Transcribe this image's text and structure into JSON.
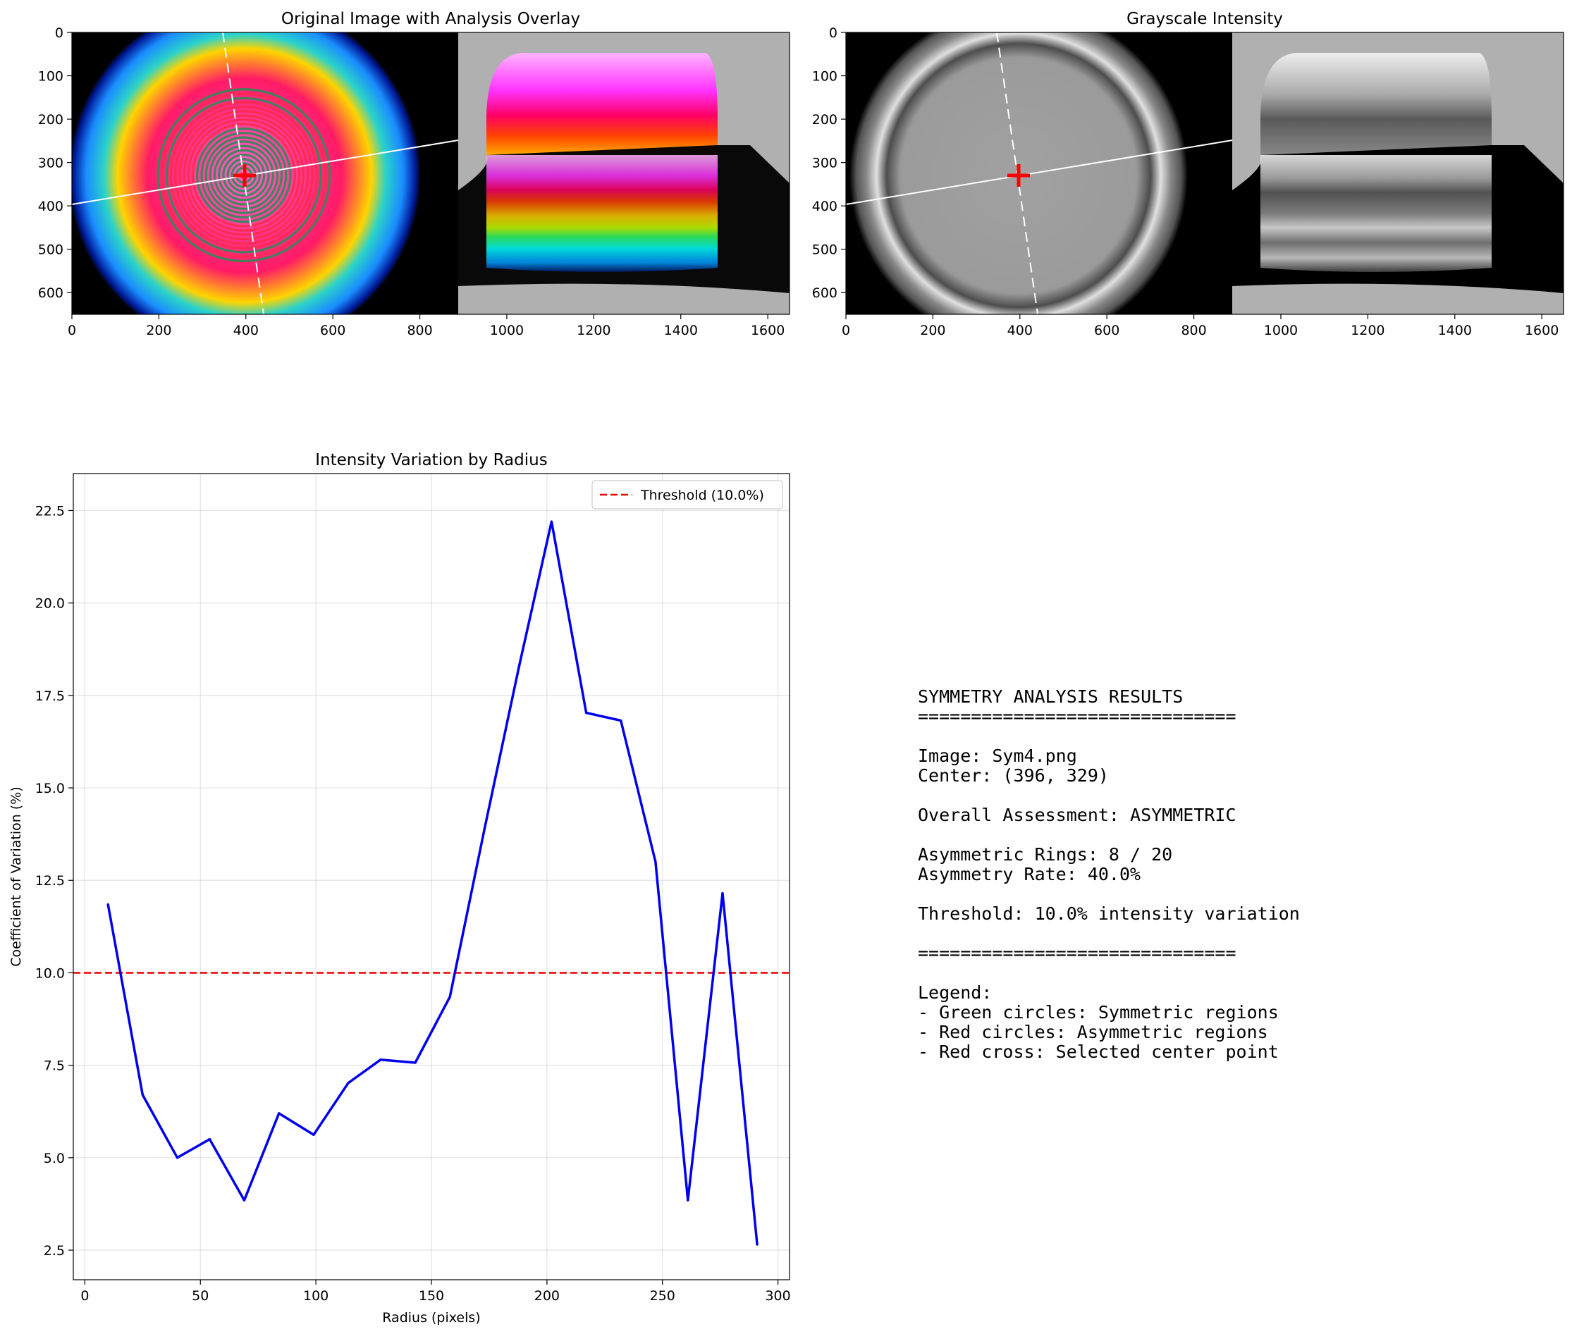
{
  "chart_data": [
    {
      "type": "image",
      "title": "Original Image with Analysis Overlay",
      "x_ticks": [
        "0",
        "200",
        "400",
        "600",
        "800",
        "1000",
        "1200",
        "1400",
        "1600"
      ],
      "y_ticks": [
        "0",
        "100",
        "200",
        "300",
        "400",
        "500",
        "600"
      ],
      "xlim": [
        0,
        1650
      ],
      "ylim": [
        650,
        0
      ],
      "center": [
        396,
        329
      ],
      "colors": {
        "symmetric": "#2e8b57",
        "asymmetric": "#ff2a4d",
        "cross": "#ff0000"
      }
    },
    {
      "type": "image",
      "title": "Grayscale Intensity",
      "x_ticks": [
        "0",
        "200",
        "400",
        "600",
        "800",
        "1000",
        "1200",
        "1400",
        "1600"
      ],
      "y_ticks": [
        "0",
        "100",
        "200",
        "300",
        "400",
        "500",
        "600"
      ],
      "xlim": [
        0,
        1650
      ],
      "ylim": [
        650,
        0
      ],
      "center": [
        396,
        329
      ]
    },
    {
      "type": "line",
      "title": "Intensity Variation by Radius",
      "xlabel": "Radius (pixels)",
      "ylabel": "Coefficient of Variation (%)",
      "xlim": [
        -5,
        305
      ],
      "ylim": [
        1.7,
        23.5
      ],
      "x_ticks": [
        0,
        50,
        100,
        150,
        200,
        250,
        300
      ],
      "y_ticks": [
        2.5,
        5.0,
        7.5,
        10.0,
        12.5,
        15.0,
        17.5,
        20.0,
        22.5
      ],
      "grid": true,
      "legend_position": "top-right",
      "series": [
        {
          "color": "#0000ee",
          "x": [
            10,
            25,
            40,
            54,
            69,
            84,
            99,
            114,
            128,
            143,
            158,
            173,
            188,
            202,
            217,
            232,
            247,
            261,
            276,
            291
          ],
          "y": [
            11.85,
            6.7,
            5.0,
            5.5,
            3.85,
            6.2,
            5.62,
            7.02,
            7.65,
            7.57,
            9.35,
            13.9,
            18.3,
            22.2,
            17.03,
            16.82,
            13.0,
            3.85,
            12.15,
            2.65
          ]
        }
      ],
      "threshold": {
        "label": "Threshold (10.0%)",
        "value": 10.0,
        "color": "#ee0000"
      }
    }
  ],
  "results": {
    "lines": [
      "SYMMETRY ANALYSIS RESULTS",
      "==============================",
      "",
      "Image: Sym4.png",
      "Center: (396, 329)",
      "",
      "Overall Assessment: ASYMMETRIC",
      "",
      "Asymmetric Rings: 8 / 20",
      "Asymmetry Rate: 40.0%",
      "",
      "Threshold: 10.0% intensity variation",
      "",
      "==============================",
      "",
      "Legend:",
      "- Green circles: Symmetric regions",
      "- Red circles: Asymmetric regions",
      "- Red cross: Selected center point"
    ]
  }
}
